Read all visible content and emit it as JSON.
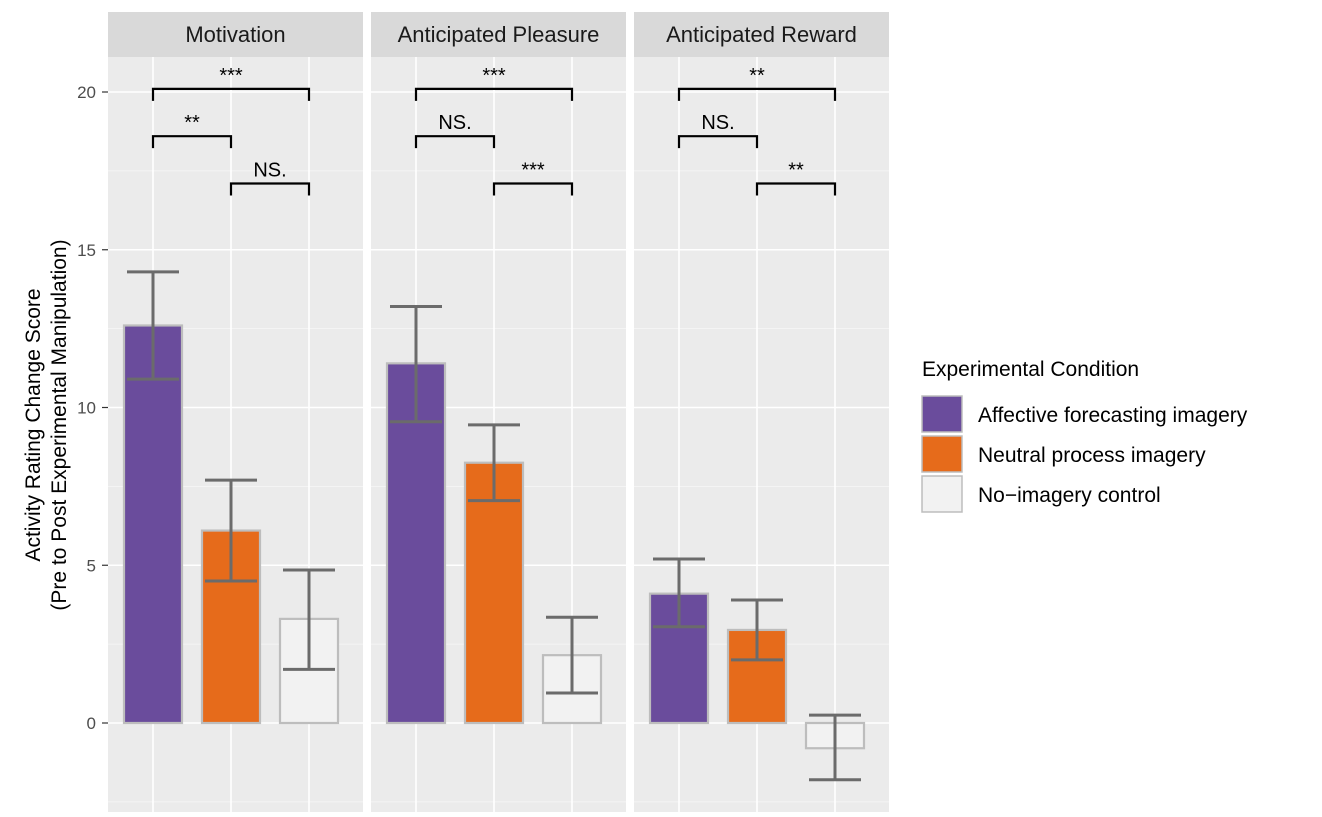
{
  "chart_data": {
    "type": "bar",
    "ylabel_line1": "Activity Rating Change Score",
    "ylabel_line2": "(Pre to Post Experimental Manipulation)",
    "ylim": [
      -2.6,
      22.0
    ],
    "yticks": [
      0,
      5,
      10,
      15,
      20
    ],
    "grid": true,
    "legend": {
      "title": "Experimental Condition",
      "placement": "right",
      "entries": [
        {
          "label": "Affective forecasting imagery",
          "color": "#6a4c9c"
        },
        {
          "label": "Neutral process imagery",
          "color": "#e66b1b"
        },
        {
          "label": "No−imagery control",
          "color": "#f2f2f2"
        }
      ]
    },
    "colors": {
      "affective": "#6a4c9c",
      "neutral": "#e66b1b",
      "control": "#f2f2f2",
      "bar_outline": "#bdbdbd",
      "errorbar": "#6b6b6b"
    },
    "panels": [
      {
        "title": "Motivation",
        "bars": [
          {
            "condition": "Affective forecasting imagery",
            "value": 12.6,
            "lower": 10.9,
            "upper": 14.3
          },
          {
            "condition": "Neutral process imagery",
            "value": 6.1,
            "lower": 4.5,
            "upper": 7.7
          },
          {
            "condition": "No−imagery control",
            "value": 3.3,
            "lower": 1.7,
            "upper": 4.85
          }
        ],
        "comparisons": [
          {
            "from": 0,
            "to": 2,
            "y": 20.1,
            "label": "***"
          },
          {
            "from": 0,
            "to": 1,
            "y": 18.6,
            "label": "**"
          },
          {
            "from": 1,
            "to": 2,
            "y": 17.1,
            "label": "NS."
          }
        ]
      },
      {
        "title": "Anticipated Pleasure",
        "bars": [
          {
            "condition": "Affective forecasting imagery",
            "value": 11.4,
            "lower": 9.55,
            "upper": 13.2
          },
          {
            "condition": "Neutral process imagery",
            "value": 8.25,
            "lower": 7.05,
            "upper": 9.45
          },
          {
            "condition": "No−imagery control",
            "value": 2.15,
            "lower": 0.95,
            "upper": 3.35
          }
        ],
        "comparisons": [
          {
            "from": 0,
            "to": 2,
            "y": 20.1,
            "label": "***"
          },
          {
            "from": 0,
            "to": 1,
            "y": 18.6,
            "label": "NS."
          },
          {
            "from": 1,
            "to": 2,
            "y": 17.1,
            "label": "***"
          }
        ]
      },
      {
        "title": "Anticipated Reward",
        "bars": [
          {
            "condition": "Affective forecasting imagery",
            "value": 4.1,
            "lower": 3.05,
            "upper": 5.2
          },
          {
            "condition": "Neutral process imagery",
            "value": 2.95,
            "lower": 2.0,
            "upper": 3.9
          },
          {
            "condition": "No−imagery control",
            "value": -0.8,
            "lower": -1.8,
            "upper": 0.25
          }
        ],
        "comparisons": [
          {
            "from": 0,
            "to": 2,
            "y": 20.1,
            "label": "**"
          },
          {
            "from": 0,
            "to": 1,
            "y": 18.6,
            "label": "NS."
          },
          {
            "from": 1,
            "to": 2,
            "y": 17.1,
            "label": "**"
          }
        ]
      }
    ]
  }
}
